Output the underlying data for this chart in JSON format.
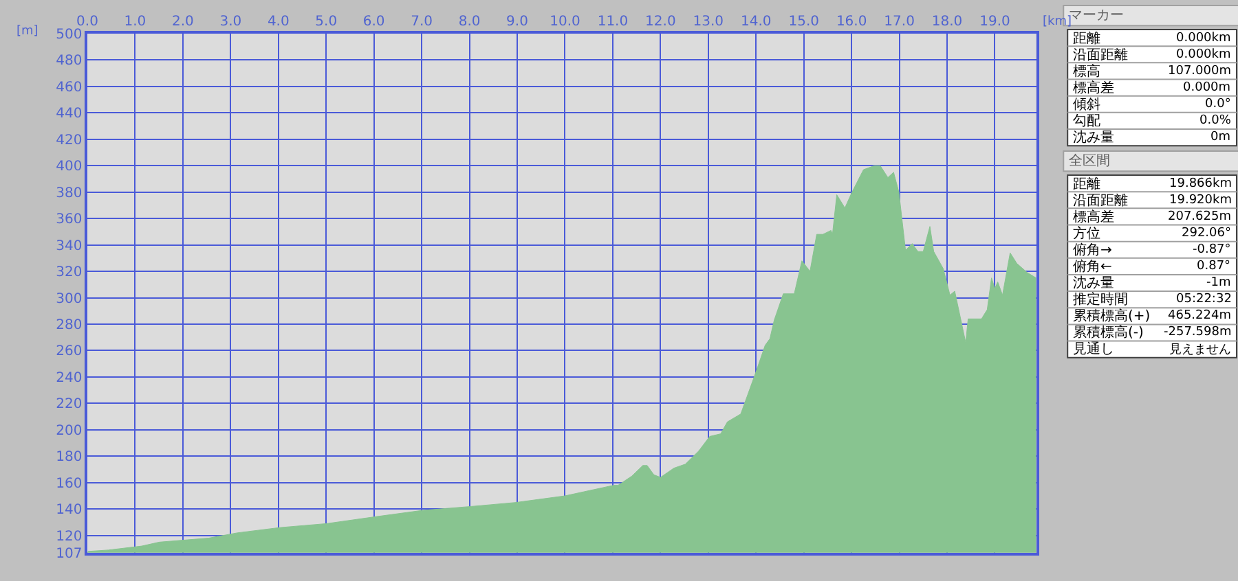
{
  "chart_data": [
    {
      "type": "area",
      "xlabel": "[km]",
      "ylabel": "[m]",
      "x": [
        0,
        0.02,
        0.44,
        1.14,
        1.51,
        2.54,
        3.14,
        4.03,
        5.01,
        5.99,
        7.01,
        8.04,
        8.97,
        10.0,
        11.02,
        11.11,
        11.4,
        11.63,
        11.72,
        11.86,
        12.0,
        12.28,
        12.52,
        12.8,
        13.03,
        13.26,
        13.4,
        13.68,
        14.01,
        14.19,
        14.29,
        14.38,
        14.57,
        14.8,
        14.96,
        15.13,
        15.27,
        15.4,
        15.57,
        15.6,
        15.69,
        15.86,
        16.01,
        16.25,
        16.48,
        16.6,
        16.76,
        16.88,
        16.99,
        17.13,
        17.27,
        17.39,
        17.5,
        17.64,
        17.72,
        17.92,
        18.06,
        18.16,
        18.39,
        18.44,
        18.72,
        18.84,
        18.93,
        19.0,
        19.06,
        19.16,
        19.32,
        19.46,
        19.68,
        19.866
      ],
      "series": [
        {
          "color": "#88c490",
          "values": [
            107,
            108,
            109,
            112,
            115,
            118,
            122,
            126,
            129,
            134,
            139,
            142,
            145,
            150,
            158,
            158,
            165,
            173,
            173,
            166,
            164,
            171,
            174,
            184,
            195,
            197,
            206,
            212,
            245,
            264,
            269,
            283,
            303,
            303,
            328,
            320,
            348,
            348,
            351,
            348,
            378,
            368,
            380,
            397,
            400,
            400,
            391,
            395,
            380,
            336,
            341,
            335,
            335,
            354,
            335,
            322,
            302,
            305,
            266,
            284,
            284,
            291,
            315,
            307,
            312,
            302,
            334,
            326,
            319,
            315
          ]
        }
      ],
      "xlim": [
        0,
        19.866
      ],
      "xticks": [
        {
          "value": 0,
          "label": "0.0"
        },
        {
          "value": 1,
          "label": "1.0"
        },
        {
          "value": 2,
          "label": "2.0"
        },
        {
          "value": 3,
          "label": "3.0"
        },
        {
          "value": 4,
          "label": "4.0"
        },
        {
          "value": 5,
          "label": "5.0"
        },
        {
          "value": 6,
          "label": "6.0"
        },
        {
          "value": 7,
          "label": "7.0"
        },
        {
          "value": 8,
          "label": "8.0"
        },
        {
          "value": 9,
          "label": "9.0"
        },
        {
          "value": 10,
          "label": "10.0"
        },
        {
          "value": 11,
          "label": "11.0"
        },
        {
          "value": 12,
          "label": "12.0"
        },
        {
          "value": 13,
          "label": "13.0"
        },
        {
          "value": 14,
          "label": "14.0"
        },
        {
          "value": 15,
          "label": "15.0"
        },
        {
          "value": 16,
          "label": "16.0"
        },
        {
          "value": 17,
          "label": "17.0"
        },
        {
          "value": 18,
          "label": "18.0"
        },
        {
          "value": 19,
          "label": "19.0"
        }
      ],
      "ylim": [
        107,
        500
      ],
      "yticks": [
        107,
        120,
        140,
        160,
        180,
        200,
        220,
        240,
        260,
        280,
        300,
        320,
        340,
        360,
        380,
        400,
        420,
        440,
        460,
        480,
        500
      ],
      "grid": true
    },
    {
      "type": "other",
      "title": "マーカー",
      "annotations": [
        "距離",
        "0.000km",
        "沿面距離",
        "0.000km",
        "標高",
        "107.000m",
        "標高差",
        "0.000m",
        "傾斜",
        "0.0°",
        "勾配",
        "0.0%",
        "沈み量",
        "0m"
      ]
    },
    {
      "type": "other",
      "title": "全区間",
      "annotations": [
        "距離",
        "19.866km",
        "沿面距離",
        "19.920km",
        "標高差",
        "207.625m",
        "方位",
        "292.06°",
        "俯角→",
        "-0.87°",
        "俯角←",
        "0.87°",
        "沈み量",
        "-1m",
        "推定時間",
        "05:22:32",
        "累積標高(+)",
        "465.224m",
        "累積標高(-)",
        "-257.598m",
        "見通し",
        "見えません"
      ]
    }
  ]
}
